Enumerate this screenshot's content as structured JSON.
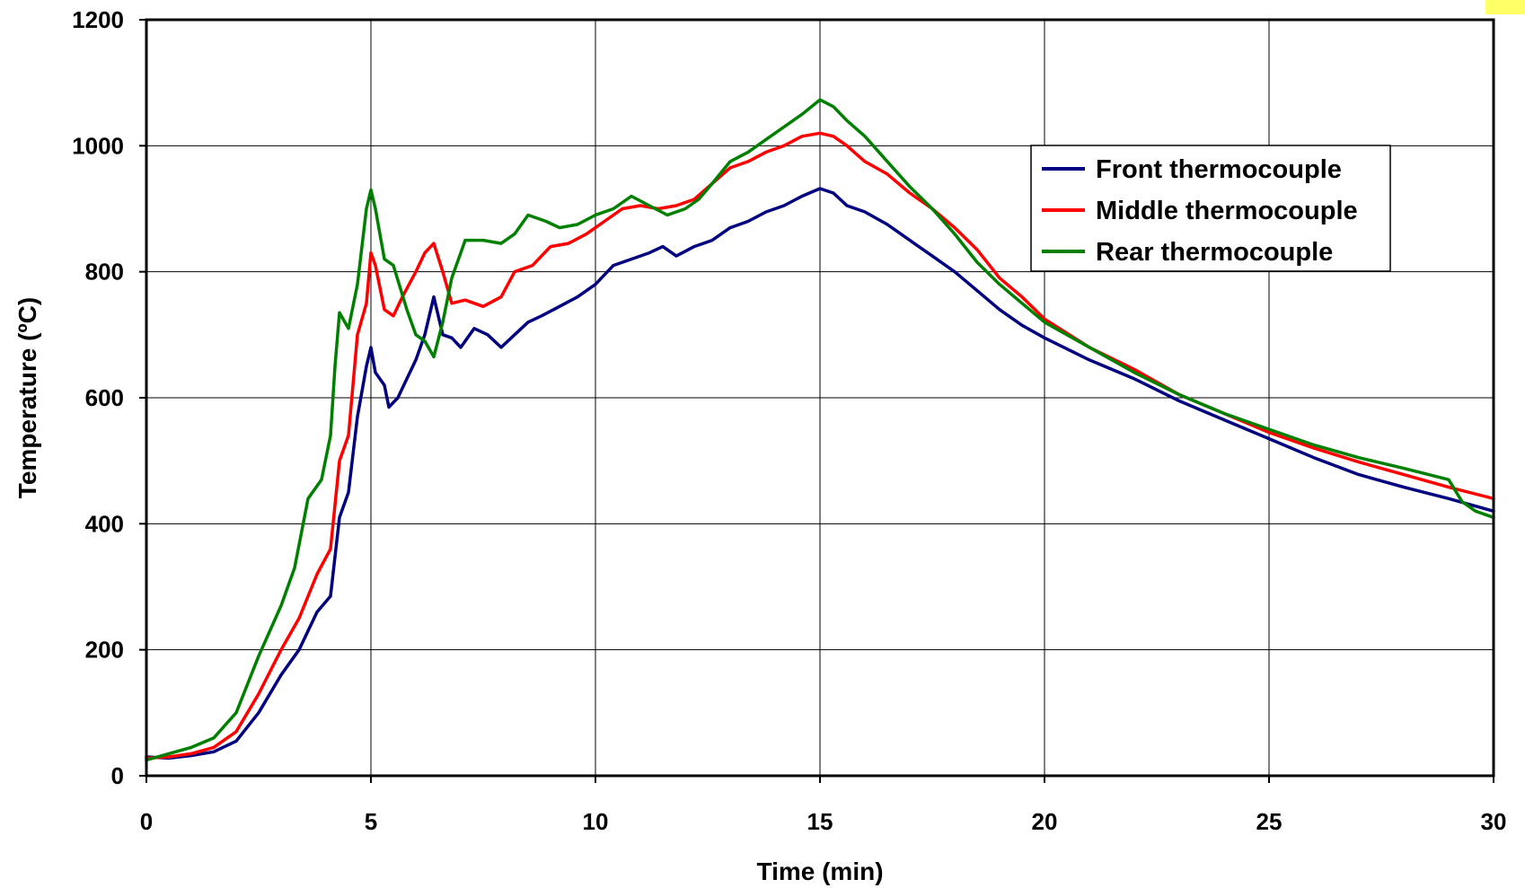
{
  "chart_data": {
    "type": "line",
    "xlabel": "Time (min)",
    "ylabel": "Temperature (ºC)",
    "xlim": [
      0,
      30
    ],
    "ylim": [
      0,
      1200
    ],
    "x_ticks": [
      "0",
      "5",
      "10",
      "15",
      "20",
      "25",
      "30"
    ],
    "y_ticks": [
      "0",
      "200",
      "400",
      "600",
      "800",
      "1000",
      "1200"
    ],
    "grid": true,
    "legend_position": "top-right",
    "series": [
      {
        "name": "Front thermocouple",
        "color": "#000080",
        "points": [
          [
            0,
            30
          ],
          [
            0.5,
            28
          ],
          [
            1,
            32
          ],
          [
            1.5,
            38
          ],
          [
            2,
            55
          ],
          [
            2.5,
            100
          ],
          [
            3,
            160
          ],
          [
            3.4,
            200
          ],
          [
            3.8,
            260
          ],
          [
            4.1,
            285
          ],
          [
            4.3,
            410
          ],
          [
            4.5,
            450
          ],
          [
            4.7,
            570
          ],
          [
            4.9,
            650
          ],
          [
            5,
            680
          ],
          [
            5.1,
            640
          ],
          [
            5.3,
            620
          ],
          [
            5.4,
            585
          ],
          [
            5.6,
            600
          ],
          [
            5.8,
            630
          ],
          [
            6,
            660
          ],
          [
            6.2,
            700
          ],
          [
            6.4,
            760
          ],
          [
            6.6,
            700
          ],
          [
            6.8,
            695
          ],
          [
            7,
            680
          ],
          [
            7.3,
            710
          ],
          [
            7.6,
            700
          ],
          [
            7.9,
            680
          ],
          [
            8.2,
            700
          ],
          [
            8.5,
            720
          ],
          [
            8.8,
            730
          ],
          [
            9.2,
            745
          ],
          [
            9.6,
            760
          ],
          [
            10,
            780
          ],
          [
            10.4,
            810
          ],
          [
            10.8,
            820
          ],
          [
            11.2,
            830
          ],
          [
            11.5,
            840
          ],
          [
            11.8,
            825
          ],
          [
            12.2,
            840
          ],
          [
            12.6,
            850
          ],
          [
            13,
            870
          ],
          [
            13.4,
            880
          ],
          [
            13.8,
            895
          ],
          [
            14.2,
            905
          ],
          [
            14.6,
            920
          ],
          [
            15,
            932
          ],
          [
            15.3,
            925
          ],
          [
            15.6,
            905
          ],
          [
            16,
            895
          ],
          [
            16.5,
            875
          ],
          [
            17,
            850
          ],
          [
            17.5,
            825
          ],
          [
            18,
            800
          ],
          [
            18.5,
            770
          ],
          [
            19,
            740
          ],
          [
            19.5,
            715
          ],
          [
            20,
            695
          ],
          [
            21,
            660
          ],
          [
            22,
            630
          ],
          [
            23,
            595
          ],
          [
            24,
            565
          ],
          [
            25,
            535
          ],
          [
            26,
            505
          ],
          [
            27,
            478
          ],
          [
            28,
            458
          ],
          [
            29,
            440
          ],
          [
            30,
            420
          ]
        ]
      },
      {
        "name": "Middle thermocouple",
        "color": "#ff0000",
        "points": [
          [
            0,
            28
          ],
          [
            0.5,
            30
          ],
          [
            1,
            35
          ],
          [
            1.5,
            45
          ],
          [
            2,
            70
          ],
          [
            2.5,
            130
          ],
          [
            3,
            200
          ],
          [
            3.4,
            250
          ],
          [
            3.8,
            320
          ],
          [
            4.1,
            360
          ],
          [
            4.3,
            500
          ],
          [
            4.5,
            540
          ],
          [
            4.7,
            700
          ],
          [
            4.9,
            750
          ],
          [
            5,
            830
          ],
          [
            5.1,
            810
          ],
          [
            5.3,
            740
          ],
          [
            5.5,
            730
          ],
          [
            5.7,
            760
          ],
          [
            6,
            800
          ],
          [
            6.2,
            830
          ],
          [
            6.4,
            845
          ],
          [
            6.6,
            800
          ],
          [
            6.8,
            750
          ],
          [
            7.1,
            755
          ],
          [
            7.5,
            745
          ],
          [
            7.9,
            760
          ],
          [
            8.2,
            800
          ],
          [
            8.6,
            810
          ],
          [
            9,
            840
          ],
          [
            9.4,
            845
          ],
          [
            9.8,
            860
          ],
          [
            10.2,
            880
          ],
          [
            10.6,
            900
          ],
          [
            11,
            905
          ],
          [
            11.4,
            900
          ],
          [
            11.8,
            905
          ],
          [
            12.2,
            915
          ],
          [
            12.6,
            940
          ],
          [
            13,
            965
          ],
          [
            13.4,
            975
          ],
          [
            13.8,
            990
          ],
          [
            14.2,
            1000
          ],
          [
            14.6,
            1015
          ],
          [
            15,
            1020
          ],
          [
            15.3,
            1015
          ],
          [
            15.6,
            1000
          ],
          [
            16,
            975
          ],
          [
            16.5,
            955
          ],
          [
            17,
            925
          ],
          [
            17.5,
            900
          ],
          [
            18,
            870
          ],
          [
            18.5,
            835
          ],
          [
            19,
            790
          ],
          [
            19.5,
            760
          ],
          [
            20,
            725
          ],
          [
            21,
            680
          ],
          [
            22,
            645
          ],
          [
            23,
            605
          ],
          [
            24,
            575
          ],
          [
            25,
            545
          ],
          [
            26,
            520
          ],
          [
            27,
            498
          ],
          [
            28,
            478
          ],
          [
            29,
            458
          ],
          [
            30,
            440
          ]
        ]
      },
      {
        "name": "Rear thermocouple",
        "color": "#008000",
        "points": [
          [
            0,
            25
          ],
          [
            0.5,
            35
          ],
          [
            1,
            45
          ],
          [
            1.5,
            60
          ],
          [
            2,
            100
          ],
          [
            2.5,
            190
          ],
          [
            3,
            270
          ],
          [
            3.3,
            330
          ],
          [
            3.6,
            440
          ],
          [
            3.9,
            470
          ],
          [
            4.1,
            540
          ],
          [
            4.2,
            650
          ],
          [
            4.3,
            735
          ],
          [
            4.5,
            710
          ],
          [
            4.7,
            780
          ],
          [
            4.9,
            900
          ],
          [
            5,
            930
          ],
          [
            5.1,
            900
          ],
          [
            5.3,
            820
          ],
          [
            5.5,
            810
          ],
          [
            5.8,
            740
          ],
          [
            6,
            700
          ],
          [
            6.2,
            690
          ],
          [
            6.4,
            665
          ],
          [
            6.6,
            720
          ],
          [
            6.8,
            790
          ],
          [
            7.1,
            850
          ],
          [
            7.5,
            850
          ],
          [
            7.9,
            845
          ],
          [
            8.2,
            860
          ],
          [
            8.5,
            890
          ],
          [
            8.9,
            880
          ],
          [
            9.2,
            870
          ],
          [
            9.6,
            875
          ],
          [
            10,
            890
          ],
          [
            10.4,
            900
          ],
          [
            10.8,
            920
          ],
          [
            11.2,
            905
          ],
          [
            11.6,
            890
          ],
          [
            12,
            900
          ],
          [
            12.3,
            915
          ],
          [
            12.6,
            940
          ],
          [
            13,
            975
          ],
          [
            13.4,
            990
          ],
          [
            13.8,
            1010
          ],
          [
            14.2,
            1030
          ],
          [
            14.6,
            1050
          ],
          [
            15,
            1073
          ],
          [
            15.3,
            1062
          ],
          [
            15.6,
            1040
          ],
          [
            16,
            1015
          ],
          [
            16.5,
            975
          ],
          [
            17,
            935
          ],
          [
            17.5,
            900
          ],
          [
            18,
            860
          ],
          [
            18.5,
            815
          ],
          [
            19,
            780
          ],
          [
            19.5,
            750
          ],
          [
            20,
            720
          ],
          [
            21,
            680
          ],
          [
            22,
            640
          ],
          [
            23,
            605
          ],
          [
            24,
            575
          ],
          [
            25,
            550
          ],
          [
            26,
            525
          ],
          [
            27,
            505
          ],
          [
            28,
            488
          ],
          [
            29,
            470
          ],
          [
            29.3,
            435
          ],
          [
            29.6,
            420
          ],
          [
            30,
            410
          ]
        ]
      }
    ]
  }
}
